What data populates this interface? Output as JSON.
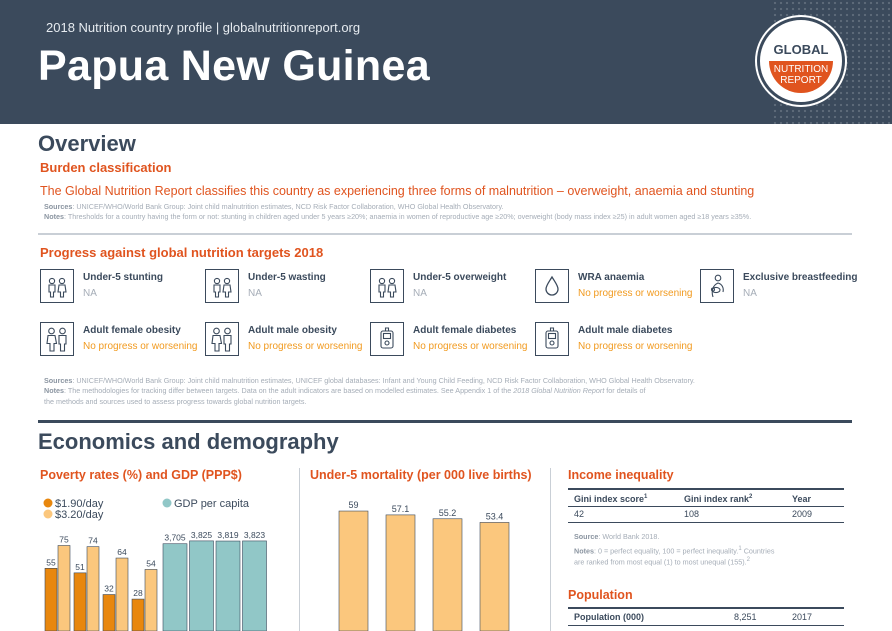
{
  "header": {
    "profile_line": "2018 Nutrition country profile  |  globalnutritionreport.org",
    "country": "Papua New Guinea",
    "logo": {
      "line1": "GLOBAL",
      "line2": "NUTRITION",
      "line3": "REPORT"
    }
  },
  "overview": {
    "title": "Overview",
    "burden_title": "Burden classification",
    "burden_statement": "The Global Nutrition Report classifies this country as experiencing three forms of malnutrition – overweight, anaemia and stunting",
    "burden_sources_label": "Sources",
    "burden_sources": ": UNICEF/WHO/World Bank Group: Joint child malnutrition estimates, NCD Risk Factor Collaboration, WHO Global Health Observatory.",
    "burden_notes_label": "Notes",
    "burden_notes": ": Thresholds for a country having the form or not: stunting in children aged under 5 years ≥20%; anaemia in women of reproductive age ≥20%; overweight (body mass index ≥25) in adult women aged ≥18 years ≥35%.",
    "progress_title": "Progress against global nutrition targets 2018",
    "targets": [
      {
        "name": "Under-5 stunting",
        "status": "NA",
        "icon": "child-pair-icon"
      },
      {
        "name": "Under-5 wasting",
        "status": "NA",
        "icon": "child-pair-icon"
      },
      {
        "name": "Under-5 overweight",
        "status": "NA",
        "icon": "child-pair-icon"
      },
      {
        "name": "WRA anaemia",
        "status": "No progress or worsening",
        "icon": "blood-drop-icon"
      },
      {
        "name": "Exclusive breastfeeding",
        "status": "NA",
        "icon": "breastfeeding-icon"
      },
      {
        "name": "Adult female obesity",
        "status": "No progress or worsening",
        "icon": "adult-pair-icon"
      },
      {
        "name": "Adult male obesity",
        "status": "No progress or worsening",
        "icon": "adult-pair-icon"
      },
      {
        "name": "Adult female diabetes",
        "status": "No progress or worsening",
        "icon": "glucose-meter-icon"
      },
      {
        "name": "Adult male diabetes",
        "status": "No progress or worsening",
        "icon": "glucose-meter-icon"
      }
    ],
    "progress_sources_label": "Sources",
    "progress_sources": ": UNICEF/WHO/World Bank Group: Joint child malnutrition estimates, UNICEF global databases: Infant and Young Child Feeding, NCD Risk Factor Collaboration, WHO Global Health Observatory.",
    "progress_notes_label": "Notes",
    "progress_notes_a": ": The methodologies for tracking differ between targets. Data on the adult indicators are based on modelled estimates. See Appendix 1 of the ",
    "progress_notes_report": "2018 Global Nutrition Report",
    "progress_notes_b": " for details of",
    "progress_notes_line2": "the methods and sources used to assess progress towards global nutrition targets."
  },
  "economics": {
    "title": "Economics and demography",
    "poverty_title": "Poverty rates (%) and GDP (PPP$)",
    "mortality_title": "Under-5 mortality (per 000 live births)",
    "income": {
      "title": "Income inequality",
      "headers": [
        "Gini index score",
        "Gini index rank",
        "Year"
      ],
      "header_sups": [
        "1",
        "2"
      ],
      "row": [
        "42",
        "108",
        "2009"
      ],
      "source_label": "Source",
      "source": ": World Bank 2018.",
      "notes_label": "Notes",
      "notes_line1": ": 0 = perfect equality, 100 = perfect inequality.",
      "notes_sup1": "1",
      "notes_line1_tail": " Countries",
      "notes_line2": "are ranked from most equal (1) to most unequal (155).",
      "notes_sup2": "2"
    },
    "population": {
      "title": "Population",
      "label": "Population (000)",
      "value": "8,251",
      "year": "2017"
    }
  },
  "chart_data": [
    {
      "type": "bar",
      "legend": [
        "$1.90/day",
        "$3.20/day",
        "GDP per capita"
      ],
      "poverty_pairs": [
        {
          "d190": 55,
          "d320": 75
        },
        {
          "d190": 51,
          "d320": 74
        },
        {
          "d190": 32,
          "d320": 64
        },
        {
          "d190": 28,
          "d320": 54
        }
      ],
      "gdp_values": [
        3705,
        3825,
        3819,
        3823
      ],
      "gdp_labels": [
        "3,705",
        "3,825",
        "3,819",
        "3,823"
      ]
    },
    {
      "type": "bar",
      "values": [
        59,
        57.1,
        55.2,
        53.4
      ],
      "labels": [
        "59",
        "57.1",
        "55.2",
        "53.4"
      ]
    }
  ],
  "colors": {
    "navy": "#3b4a5c",
    "orange": "#e0541f",
    "dark_orange": "#e8870e",
    "light_orange": "#fbc77d",
    "teal": "#91c7c7",
    "amber_text": "#f19a1f"
  }
}
